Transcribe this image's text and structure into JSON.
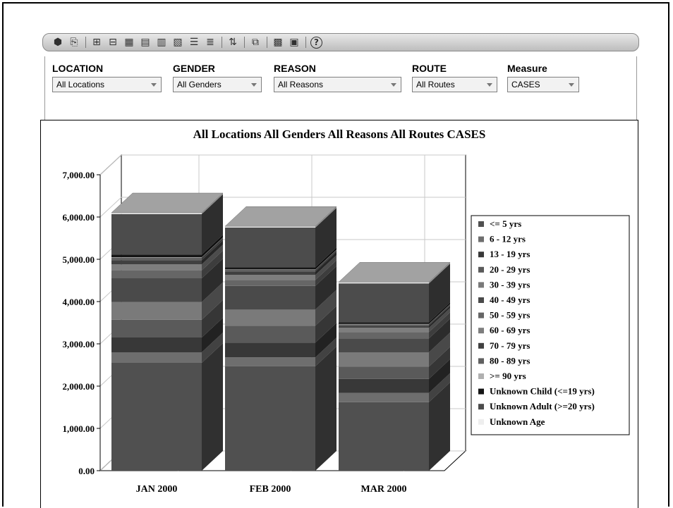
{
  "toolbar": {
    "icons": [
      "cube-icon",
      "open-icon",
      "hierarchy-up-icon",
      "hierarchy-down-icon",
      "table-icon",
      "table-ab-icon",
      "table-x3-icon",
      "table-xy-icon",
      "rows-icon",
      "rows-alt-icon",
      "sort-icon",
      "export-icon",
      "chart-icon",
      "calendar-icon",
      "help-icon"
    ]
  },
  "filters": [
    {
      "label": "LOCATION",
      "value": "All Locations"
    },
    {
      "label": "GENDER",
      "value": "All Genders"
    },
    {
      "label": "REASON",
      "value": "All Reasons"
    },
    {
      "label": "ROUTE",
      "value": "All Routes"
    },
    {
      "label": "Measure",
      "value": "CASES"
    }
  ],
  "chart_data": {
    "type": "bar",
    "stacked": true,
    "three_d": true,
    "title": "All Locations All Genders All Reasons All Routes CASES",
    "xlabel": "",
    "ylabel": "",
    "ylim": [
      0,
      7000
    ],
    "y_ticks": [
      "0.00",
      "1,000.00",
      "2,000.00",
      "3,000.00",
      "4,000.00",
      "5,000.00",
      "6,000.00",
      "7,000.00"
    ],
    "grid": true,
    "legend_position": "right",
    "categories": [
      "JAN 2000",
      "FEB 2000",
      "MAR 2000"
    ],
    "series": [
      {
        "name": "<= 5 yrs",
        "color": "#505050",
        "values": [
          2550,
          2470,
          1620
        ]
      },
      {
        "name": "6 - 12 yrs",
        "color": "#6e6e6e",
        "values": [
          250,
          210,
          220
        ]
      },
      {
        "name": "13 - 19 yrs",
        "color": "#383838",
        "values": [
          350,
          350,
          330
        ]
      },
      {
        "name": "20 - 29 yrs",
        "color": "#5a5a5a",
        "values": [
          420,
          400,
          290
        ]
      },
      {
        "name": "30 - 39 yrs",
        "color": "#7a7a7a",
        "values": [
          420,
          380,
          340
        ]
      },
      {
        "name": "40 - 49 yrs",
        "color": "#4a4a4a",
        "values": [
          560,
          560,
          330
        ]
      },
      {
        "name": "50 - 59 yrs",
        "color": "#666666",
        "values": [
          190,
          140,
          150
        ]
      },
      {
        "name": "60 - 69 yrs",
        "color": "#7e7e7e",
        "values": [
          140,
          120,
          100
        ]
      },
      {
        "name": "70 - 79 yrs",
        "color": "#404040",
        "values": [
          100,
          80,
          50
        ]
      },
      {
        "name": "80 - 89 yrs",
        "color": "#606060",
        "values": [
          60,
          40,
          30
        ]
      },
      {
        "name": ">= 90 yrs",
        "color": "#b0b0b0",
        "values": [
          10,
          10,
          10
        ]
      },
      {
        "name": "Unknown Child (<=19 yrs)",
        "color": "#151515",
        "values": [
          60,
          50,
          40
        ]
      },
      {
        "name": "Unknown Adult (>=20 yrs)",
        "color": "#4c4c4c",
        "values": [
          960,
          940,
          920
        ]
      },
      {
        "name": "Unknown Age",
        "color": "#eeeeee",
        "values": [
          30,
          30,
          30
        ]
      }
    ]
  }
}
